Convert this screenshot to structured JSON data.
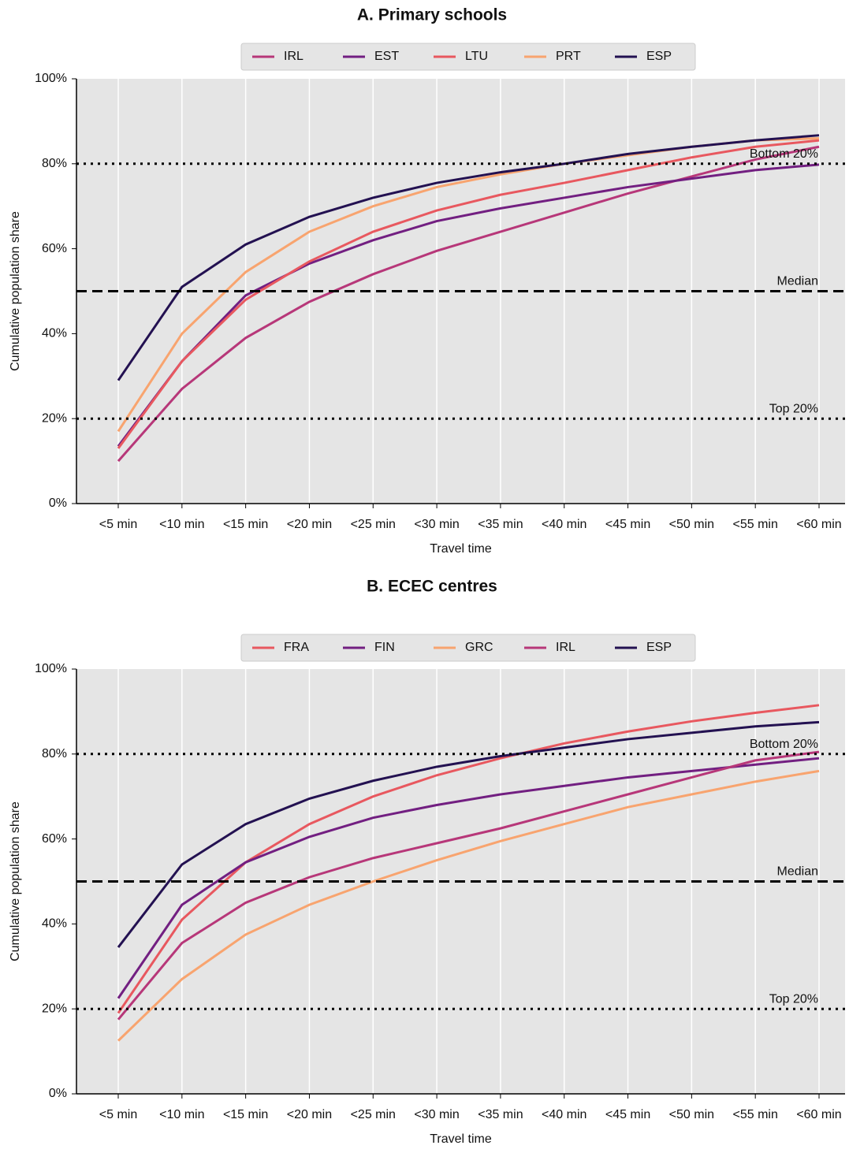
{
  "chart_data": [
    {
      "type": "line",
      "title": "A. Primary schools",
      "x_label": "Travel time",
      "y_label": "Cumulative population share",
      "categories": [
        "<5 min",
        "<10 min",
        "<15 min",
        "<20 min",
        "<25 min",
        "<30 min",
        "<35 min",
        "<40 min",
        "<45 min",
        "<50 min",
        "<55 min",
        "<60 min"
      ],
      "ylim": [
        0,
        100
      ],
      "yticks": [
        {
          "value": 0,
          "label": "0%"
        },
        {
          "value": 20,
          "label": "20%"
        },
        {
          "value": 40,
          "label": "40%"
        },
        {
          "value": 60,
          "label": "60%"
        },
        {
          "value": 80,
          "label": "80%"
        },
        {
          "value": 100,
          "label": "100%"
        }
      ],
      "grid": true,
      "legend": "top",
      "reference_lines": [
        {
          "label": "Bottom 20%",
          "value": 80,
          "style": "dotted"
        },
        {
          "label": "Median",
          "value": 50,
          "style": "dashed"
        },
        {
          "label": "Top 20%",
          "value": 20,
          "style": "dotted"
        }
      ],
      "series": [
        {
          "name": "IRL",
          "color": "#b73779",
          "values": [
            10,
            27,
            39,
            47.5,
            54,
            59.5,
            64,
            68.5,
            73,
            77,
            81,
            84
          ]
        },
        {
          "name": "EST",
          "color": "#721f81",
          "values": [
            13.5,
            33.5,
            49,
            56.5,
            62,
            66.5,
            69.5,
            72,
            74.5,
            76.5,
            78.5,
            79.8
          ]
        },
        {
          "name": "LTU",
          "color": "#e8585f",
          "values": [
            13,
            33.5,
            48,
            57,
            64,
            69,
            72.7,
            75.5,
            78.5,
            81.5,
            84,
            85.5
          ]
        },
        {
          "name": "PRT",
          "color": "#f8a46f",
          "values": [
            17,
            40,
            54.5,
            64,
            70,
            74.5,
            77.5,
            80,
            82,
            84,
            85.5,
            86
          ]
        },
        {
          "name": "ESP",
          "color": "#231151",
          "values": [
            29,
            51,
            61,
            67.5,
            72,
            75.5,
            78,
            80,
            82.3,
            84,
            85.5,
            86.7
          ]
        }
      ]
    },
    {
      "type": "line",
      "title": "B. ECEC centres",
      "x_label": "Travel time",
      "y_label": "Cumulative population share",
      "categories": [
        "<5 min",
        "<10 min",
        "<15 min",
        "<20 min",
        "<25 min",
        "<30 min",
        "<35 min",
        "<40 min",
        "<45 min",
        "<50 min",
        "<55 min",
        "<60 min"
      ],
      "ylim": [
        0,
        100
      ],
      "yticks": [
        {
          "value": 0,
          "label": "0%"
        },
        {
          "value": 20,
          "label": "20%"
        },
        {
          "value": 40,
          "label": "40%"
        },
        {
          "value": 60,
          "label": "60%"
        },
        {
          "value": 80,
          "label": "80%"
        },
        {
          "value": 100,
          "label": "100%"
        }
      ],
      "grid": true,
      "legend": "top",
      "reference_lines": [
        {
          "label": "Bottom 20%",
          "value": 80,
          "style": "dotted"
        },
        {
          "label": "Median",
          "value": 50,
          "style": "dashed"
        },
        {
          "label": "Top 20%",
          "value": 20,
          "style": "dotted"
        }
      ],
      "series": [
        {
          "name": "FRA",
          "color": "#e8585f",
          "values": [
            19,
            41,
            54.5,
            63.5,
            70,
            75,
            79,
            82.5,
            85.3,
            87.7,
            89.7,
            91.5
          ]
        },
        {
          "name": "FIN",
          "color": "#721f81",
          "values": [
            22.5,
            44.5,
            54.5,
            60.5,
            65,
            68,
            70.5,
            72.5,
            74.5,
            76,
            77.5,
            79
          ]
        },
        {
          "name": "GRC",
          "color": "#f8a46f",
          "values": [
            12.5,
            27,
            37.5,
            44.5,
            50,
            55,
            59.5,
            63.5,
            67.5,
            70.5,
            73.5,
            76
          ]
        },
        {
          "name": "IRL",
          "color": "#b73779",
          "values": [
            17.5,
            35.5,
            45,
            51,
            55.5,
            59,
            62.5,
            66.5,
            70.5,
            74.5,
            78.5,
            80.5
          ]
        },
        {
          "name": "ESP",
          "color": "#231151",
          "values": [
            34.5,
            54,
            63.5,
            69.5,
            73.7,
            77,
            79.5,
            81.5,
            83.5,
            85,
            86.5,
            87.5
          ]
        }
      ]
    }
  ]
}
